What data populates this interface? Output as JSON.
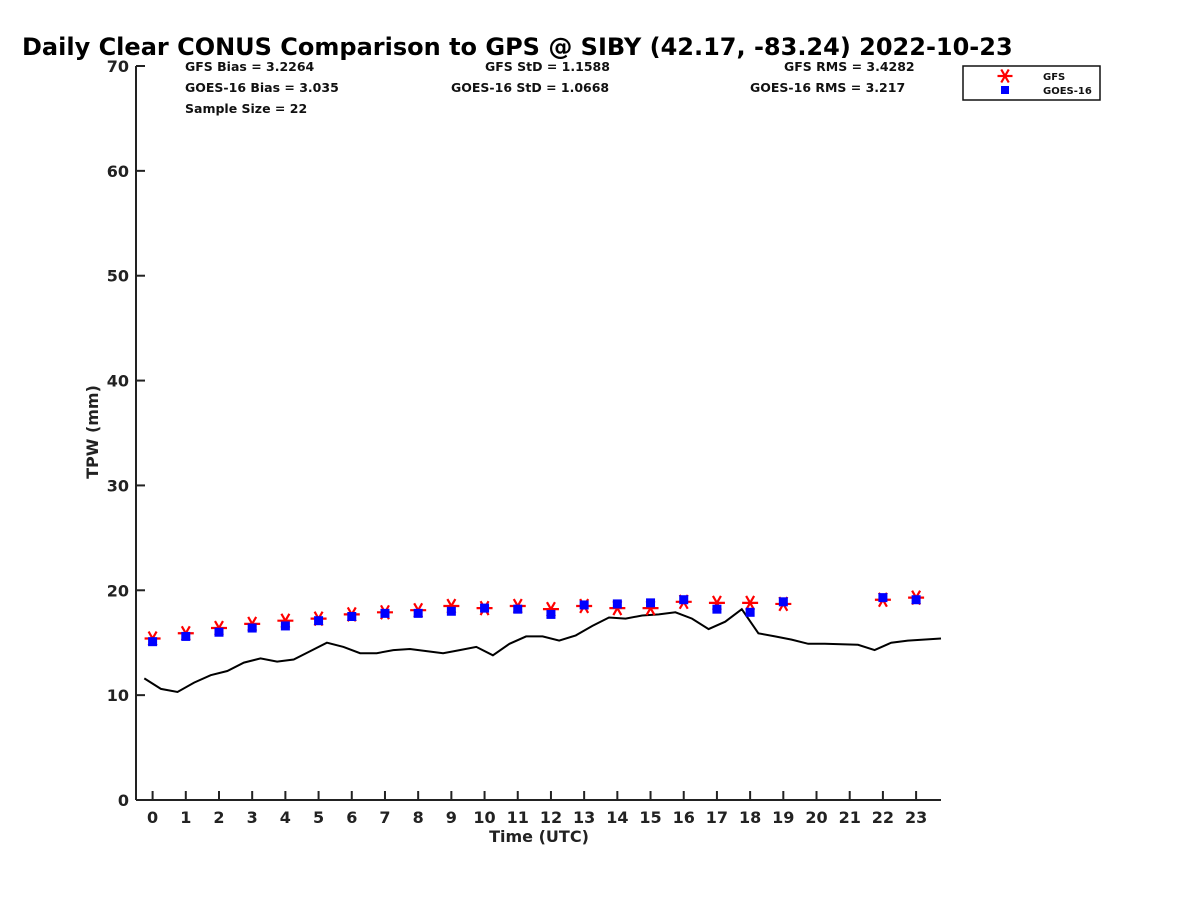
{
  "chart_data": {
    "type": "scatter",
    "title": "Daily Clear CONUS Comparison to GPS @ SIBY (42.17, -83.24) 2022-10-23",
    "xlabel": "Time (UTC)",
    "ylabel": "TPW (mm)",
    "xlim": [
      -0.5,
      23.75
    ],
    "ylim": [
      0,
      70
    ],
    "xticks": [
      0,
      1,
      2,
      3,
      4,
      5,
      6,
      7,
      8,
      9,
      10,
      11,
      12,
      13,
      14,
      15,
      16,
      17,
      18,
      19,
      20,
      21,
      22,
      23
    ],
    "yticks": [
      0,
      10,
      20,
      30,
      40,
      50,
      60,
      70
    ],
    "grid": false,
    "legend_position": "top-right",
    "stats": {
      "gfs_bias": "GFS Bias = 3.2264",
      "goes_bias": "GOES-16 Bias = 3.035",
      "sample_size": "Sample Size = 22",
      "gfs_std": "GFS StD = 1.1588",
      "goes_std": "GOES-16 StD = 1.0668",
      "gfs_rms": "GFS RMS = 3.4282",
      "goes_rms": "GOES-16 RMS = 3.217"
    },
    "series": [
      {
        "name": "GFS",
        "marker": "asterisk",
        "color": "#ff0000",
        "x": [
          0,
          1,
          2,
          3,
          4,
          5,
          6,
          7,
          8,
          9,
          10,
          11,
          12,
          13,
          14,
          15,
          16,
          17,
          18,
          19,
          22,
          23
        ],
        "y": [
          15.4,
          15.9,
          16.4,
          16.8,
          17.1,
          17.3,
          17.7,
          17.9,
          18.1,
          18.5,
          18.3,
          18.5,
          18.2,
          18.5,
          18.3,
          18.3,
          18.9,
          18.8,
          18.8,
          18.7,
          19.1,
          19.3
        ]
      },
      {
        "name": "GOES-16",
        "marker": "square",
        "color": "#0000ff",
        "x": [
          0,
          1,
          2,
          3,
          4,
          5,
          6,
          7,
          8,
          9,
          10,
          11,
          12,
          13,
          14,
          15,
          16,
          17,
          18,
          19,
          22,
          23
        ],
        "y": [
          15.1,
          15.6,
          16.0,
          16.4,
          16.6,
          17.1,
          17.5,
          17.8,
          17.8,
          18.0,
          18.3,
          18.2,
          17.7,
          18.6,
          18.7,
          18.8,
          19.1,
          18.2,
          17.9,
          18.9,
          19.3,
          19.1
        ]
      },
      {
        "name": "",
        "marker": "line",
        "color": "#000000",
        "x": [
          -0.25,
          0.25,
          0.75,
          1.25,
          1.75,
          2.25,
          2.75,
          3.25,
          3.75,
          4.25,
          4.75,
          5.25,
          5.75,
          6.25,
          6.75,
          7.25,
          7.75,
          8.25,
          8.75,
          9.25,
          9.75,
          10.25,
          10.75,
          11.25,
          11.75,
          12.25,
          12.75,
          13.25,
          13.75,
          14.25,
          14.75,
          15.25,
          15.75,
          16.25,
          16.75,
          17.25,
          17.75,
          18.25,
          18.75,
          19.25,
          19.75,
          20.25,
          20.75,
          21.25,
          21.75,
          22.25,
          22.75,
          23.75
        ],
        "y": [
          11.6,
          10.6,
          10.3,
          11.2,
          11.9,
          12.3,
          13.1,
          13.5,
          13.2,
          13.4,
          14.2,
          15.0,
          14.6,
          14.0,
          14.0,
          14.3,
          14.4,
          14.2,
          14.0,
          14.3,
          14.6,
          13.8,
          14.9,
          15.6,
          15.6,
          15.2,
          15.7,
          16.6,
          17.4,
          17.3,
          17.6,
          17.7,
          17.9,
          17.3,
          16.3,
          17.0,
          18.2,
          15.9,
          15.6,
          15.3,
          14.9,
          14.9,
          14.85,
          14.8,
          14.3,
          15.0,
          15.2,
          15.4
        ]
      }
    ]
  }
}
